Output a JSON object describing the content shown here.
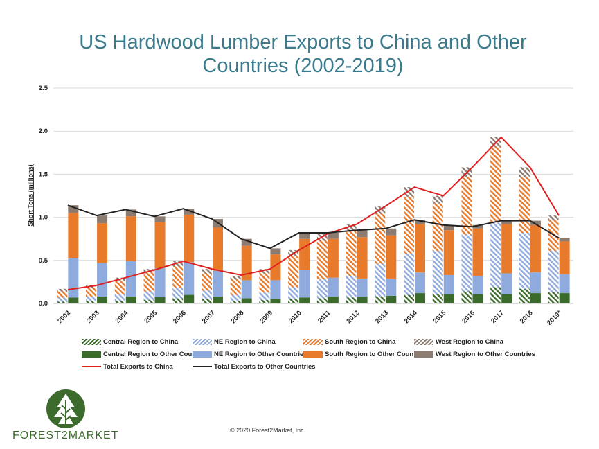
{
  "title": "US Hardwood Lumber Exports to China and Other Countries (2002-2019)",
  "copyright": "© 2020 Forest2Market, Inc.",
  "logo_text": "FOREST2MARKET",
  "colors": {
    "central": "#3b6b2a",
    "ne": "#8faadc",
    "south": "#e87a2c",
    "west": "#8c7b70",
    "total_china": "#e02020",
    "total_other": "#222222",
    "title": "#3a7a8c"
  },
  "chart_data": {
    "type": "bar",
    "subtype": "stacked-bar-with-lines",
    "ylabel": "Short Tons (millions)",
    "ylim": [
      0,
      2.5
    ],
    "yticks": [
      "0.0",
      "0.5",
      "1.0",
      "1.5",
      "2.0",
      "2.5"
    ],
    "categories": [
      "2002",
      "2003",
      "2004",
      "2005",
      "2006",
      "2007",
      "2008",
      "2009",
      "2010",
      "2011",
      "2012",
      "2013",
      "2014",
      "2015",
      "2016",
      "2017",
      "2018",
      "2019*"
    ],
    "legend_position": "bottom",
    "grid": true,
    "china_stack": [
      {
        "name": "Central Region to China",
        "color_key": "central",
        "pattern": "hatch",
        "values": [
          0.02,
          0.03,
          0.03,
          0.04,
          0.06,
          0.05,
          0.03,
          0.04,
          0.05,
          0.06,
          0.07,
          0.08,
          0.1,
          0.11,
          0.14,
          0.19,
          0.17,
          0.13
        ]
      },
      {
        "name": "NE Region to China",
        "color_key": "ne",
        "pattern": "hatch",
        "values": [
          0.05,
          0.05,
          0.08,
          0.1,
          0.12,
          0.1,
          0.07,
          0.09,
          0.14,
          0.22,
          0.25,
          0.38,
          0.48,
          0.5,
          0.66,
          0.75,
          0.65,
          0.48
        ]
      },
      {
        "name": "South Region to China",
        "color_key": "south",
        "pattern": "hatch",
        "values": [
          0.07,
          0.1,
          0.15,
          0.22,
          0.25,
          0.2,
          0.18,
          0.22,
          0.36,
          0.45,
          0.52,
          0.58,
          0.66,
          0.55,
          0.67,
          0.88,
          0.64,
          0.36
        ]
      },
      {
        "name": "West Region to China",
        "color_key": "west",
        "pattern": "hatch",
        "values": [
          0.03,
          0.03,
          0.04,
          0.04,
          0.06,
          0.05,
          0.04,
          0.05,
          0.07,
          0.08,
          0.08,
          0.09,
          0.11,
          0.09,
          0.11,
          0.11,
          0.12,
          0.05
        ]
      }
    ],
    "other_stack": [
      {
        "name": "Central Region to Other Countries",
        "color_key": "central",
        "pattern": "solid",
        "values": [
          0.07,
          0.08,
          0.08,
          0.08,
          0.1,
          0.08,
          0.06,
          0.05,
          0.07,
          0.08,
          0.08,
          0.09,
          0.12,
          0.11,
          0.11,
          0.11,
          0.12,
          0.12
        ]
      },
      {
        "name": "NE Region to Other Countries",
        "color_key": "ne",
        "pattern": "solid",
        "values": [
          0.46,
          0.39,
          0.41,
          0.33,
          0.38,
          0.3,
          0.21,
          0.22,
          0.32,
          0.22,
          0.21,
          0.2,
          0.24,
          0.22,
          0.21,
          0.24,
          0.24,
          0.22
        ]
      },
      {
        "name": "South Region to Other Countries",
        "color_key": "south",
        "pattern": "solid",
        "values": [
          0.52,
          0.46,
          0.52,
          0.53,
          0.55,
          0.5,
          0.4,
          0.3,
          0.36,
          0.45,
          0.48,
          0.5,
          0.56,
          0.52,
          0.55,
          0.57,
          0.55,
          0.38
        ]
      },
      {
        "name": "West Region to Other Countries",
        "color_key": "west",
        "pattern": "solid",
        "values": [
          0.09,
          0.09,
          0.08,
          0.07,
          0.07,
          0.1,
          0.08,
          0.07,
          0.07,
          0.07,
          0.08,
          0.08,
          0.05,
          0.06,
          0.04,
          0.04,
          0.05,
          0.04
        ]
      }
    ],
    "lines": [
      {
        "name": "Total Exports to China",
        "color_key": "total_china",
        "values": [
          0.16,
          0.21,
          0.3,
          0.39,
          0.49,
          0.4,
          0.33,
          0.4,
          0.62,
          0.81,
          0.92,
          1.13,
          1.35,
          1.25,
          1.58,
          1.93,
          1.58,
          1.02
        ]
      },
      {
        "name": "Total Exports to Other Countries",
        "color_key": "total_other",
        "values": [
          1.14,
          1.02,
          1.09,
          1.01,
          1.1,
          0.98,
          0.75,
          0.64,
          0.82,
          0.82,
          0.85,
          0.87,
          0.97,
          0.91,
          0.89,
          0.96,
          0.96,
          0.76
        ]
      }
    ]
  }
}
